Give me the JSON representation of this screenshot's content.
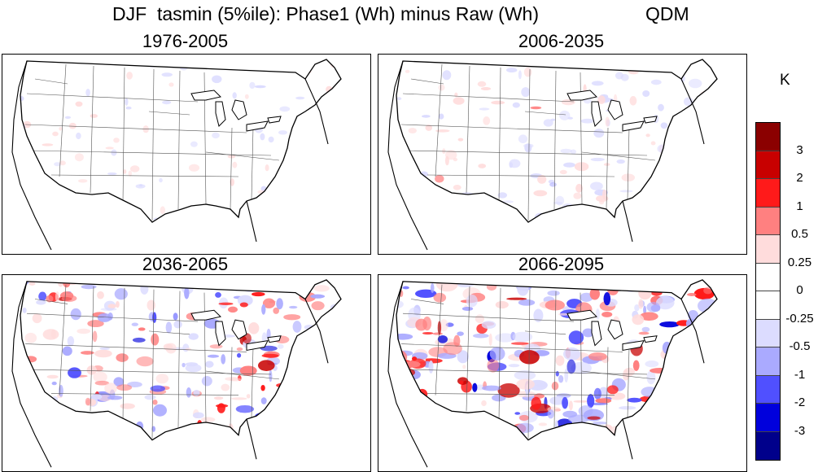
{
  "figure": {
    "title": "DJF  tasmin (5%ile): Phase1 (Wh) minus Raw (Wh)",
    "method": "QDM",
    "unit": "K"
  },
  "panels": [
    {
      "label": "1976-2005",
      "intensity": 0.12
    },
    {
      "label": "2006-2035",
      "intensity": 0.35
    },
    {
      "label": "2036-2065",
      "intensity": 0.65
    },
    {
      "label": "2066-2095",
      "intensity": 0.95
    }
  ],
  "colorbar": {
    "colors": [
      "#8b0000",
      "#c80000",
      "#ff1a1a",
      "#ff8080",
      "#ffdcdc",
      "#ffffff",
      "#ffffff",
      "#dcdcff",
      "#aaaaff",
      "#5050ff",
      "#0000dc",
      "#00008b"
    ],
    "tick_labels": [
      "3",
      "2",
      "1",
      "0.5",
      "0.25",
      "0",
      "-0.25",
      "-0.5",
      "-1",
      "-2",
      "-3"
    ]
  }
}
